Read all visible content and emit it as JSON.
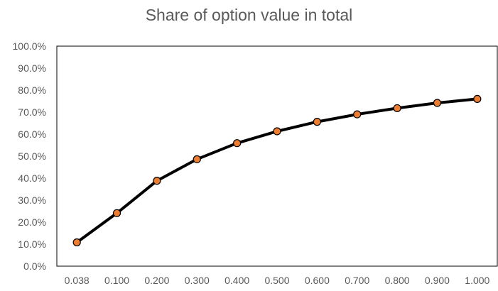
{
  "chart_data": {
    "type": "line",
    "title": "Share of option value in total",
    "categories": [
      "0.038",
      "0.100",
      "0.200",
      "0.300",
      "0.400",
      "0.500",
      "0.600",
      "0.700",
      "0.800",
      "0.900",
      "1.000"
    ],
    "series": [
      {
        "values": [
          10.8,
          24.1,
          38.8,
          48.6,
          55.9,
          61.3,
          65.6,
          69.0,
          71.8,
          74.2,
          76.0
        ]
      }
    ],
    "y_tick_labels": [
      "0.0%",
      "10.0%",
      "20.0%",
      "30.0%",
      "40.0%",
      "50.0%",
      "60.0%",
      "70.0%",
      "80.0%",
      "90.0%",
      "100.0%"
    ],
    "ylim": [
      0,
      100
    ],
    "xlabel": "",
    "ylabel": "",
    "grid": false,
    "legend": "none",
    "colors": {
      "line": "#000000",
      "marker_fill": "#ED7D31",
      "marker_stroke": "#000000",
      "axis": "#000000",
      "text": "#595959"
    }
  }
}
